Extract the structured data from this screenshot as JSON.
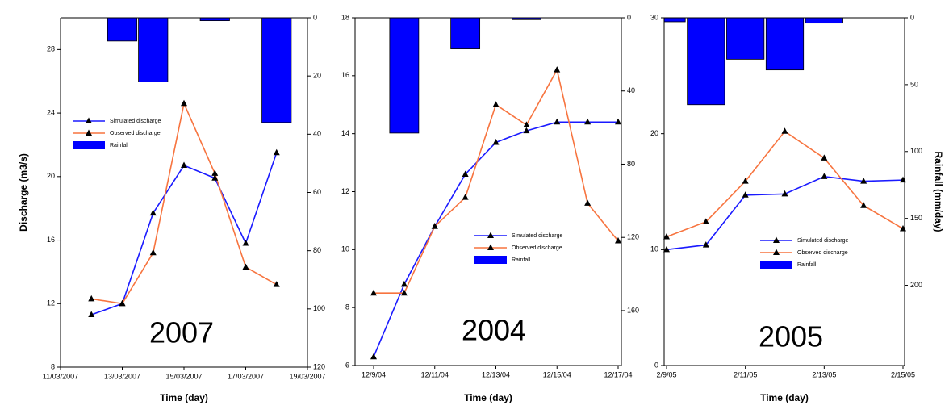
{
  "chart_data": [
    {
      "type": "line",
      "annotation": "2007",
      "x_label": "Time (day)",
      "y_label": "Discharge (m3/s)",
      "xlim": [
        "11/03/2007",
        "19/03/2007"
      ],
      "xticks": [
        "11/03/2007",
        "13/03/2007",
        "15/03/2007",
        "17/03/2007",
        "19/03/2007"
      ],
      "ylim": [
        8,
        30
      ],
      "yticks": [
        8,
        12,
        16,
        20,
        24,
        28
      ],
      "y2lim": [
        0,
        120
      ],
      "y2ticks": [
        0,
        20,
        40,
        60,
        80,
        100,
        120
      ],
      "y2_inverted": true,
      "series": [
        {
          "name": "Simulated discharge",
          "color": "#1a1aff",
          "x": [
            "12/03/2007",
            "13/03/2007",
            "14/03/2007",
            "15/03/2007",
            "16/03/2007",
            "17/03/2007",
            "18/03/2007"
          ],
          "values": [
            11.3,
            12.0,
            17.7,
            20.7,
            19.9,
            15.8,
            21.5
          ]
        },
        {
          "name": "Observed discharge",
          "color": "#f7743f",
          "x": [
            "12/03/2007",
            "13/03/2007",
            "14/03/2007",
            "15/03/2007",
            "16/03/2007",
            "17/03/2007",
            "18/03/2007"
          ],
          "values": [
            12.3,
            12.0,
            15.2,
            24.6,
            20.2,
            14.3,
            13.2
          ]
        },
        {
          "name": "Rainfall",
          "type": "bar",
          "axis": "y2",
          "color": "#0000ff",
          "x": [
            "13/03/2007",
            "14/03/2007",
            "16/03/2007",
            "18/03/2007"
          ],
          "values": [
            8,
            22,
            1,
            36
          ]
        }
      ]
    },
    {
      "type": "line",
      "annotation": "2004",
      "x_label": "Time (day)",
      "xlim": [
        "12/9/04",
        "12/17/04"
      ],
      "xticks": [
        "12/9/04",
        "12/11/04",
        "12/13/04",
        "12/15/04",
        "12/17/04"
      ],
      "ylim": [
        6,
        18
      ],
      "yticks": [
        6,
        8,
        10,
        12,
        14,
        16,
        18
      ],
      "y2lim": [
        0,
        190
      ],
      "y2ticks": [
        0,
        40,
        80,
        120,
        160
      ],
      "y2_inverted": true,
      "series": [
        {
          "name": "Simulated discharge",
          "color": "#1a1aff",
          "x": [
            "12/9/04",
            "12/10/04",
            "12/11/04",
            "12/12/04",
            "12/13/04",
            "12/14/04",
            "12/15/04",
            "12/16/04",
            "12/17/04"
          ],
          "values": [
            6.3,
            8.8,
            10.8,
            12.6,
            13.7,
            14.1,
            14.4,
            14.4,
            14.4
          ]
        },
        {
          "name": "Observed discharge",
          "color": "#f7743f",
          "x": [
            "12/9/04",
            "12/10/04",
            "12/11/04",
            "12/12/04",
            "12/13/04",
            "12/14/04",
            "12/15/04",
            "12/16/04",
            "12/17/04"
          ],
          "values": [
            8.5,
            8.5,
            10.8,
            11.8,
            15.0,
            14.3,
            16.2,
            11.6,
            10.3
          ]
        },
        {
          "name": "Rainfall",
          "type": "bar",
          "axis": "y2",
          "color": "#0000ff",
          "x": [
            "12/10/04",
            "12/12/04",
            "12/14/04"
          ],
          "values": [
            63,
            17,
            1
          ]
        }
      ]
    },
    {
      "type": "line",
      "annotation": "2005",
      "x_label": "Time (day)",
      "y2_label": "Rainfall (mm/day)",
      "xlim": [
        "2/9/05",
        "2/15/05"
      ],
      "xticks": [
        "2/9/05",
        "2/11/05",
        "2/13/05",
        "2/15/05"
      ],
      "ylim": [
        0,
        30
      ],
      "yticks": [
        0,
        10,
        20,
        30
      ],
      "y2lim": [
        0,
        260
      ],
      "y2ticks": [
        0,
        50,
        100,
        150,
        200
      ],
      "y2_inverted": true,
      "series": [
        {
          "name": "Simulated discharge",
          "color": "#1a1aff",
          "x": [
            "2/9/05",
            "2/10/05",
            "2/11/05",
            "2/12/05",
            "2/13/05",
            "2/14/05",
            "2/15/05"
          ],
          "values": [
            10.0,
            10.4,
            14.7,
            14.8,
            16.3,
            15.9,
            16.0
          ]
        },
        {
          "name": "Observed discharge",
          "color": "#f7743f",
          "x": [
            "2/9/05",
            "2/10/05",
            "2/11/05",
            "2/12/05",
            "2/13/05",
            "2/14/05",
            "2/15/05"
          ],
          "values": [
            11.1,
            12.4,
            15.9,
            20.2,
            17.9,
            13.8,
            11.8
          ]
        },
        {
          "name": "Rainfall",
          "type": "bar",
          "axis": "y2",
          "color": "#0000ff",
          "x": [
            "2/9/05",
            "2/10/05",
            "2/11/05",
            "2/12/05",
            "2/13/05"
          ],
          "values": [
            3,
            65,
            31,
            39,
            4
          ]
        }
      ]
    }
  ]
}
